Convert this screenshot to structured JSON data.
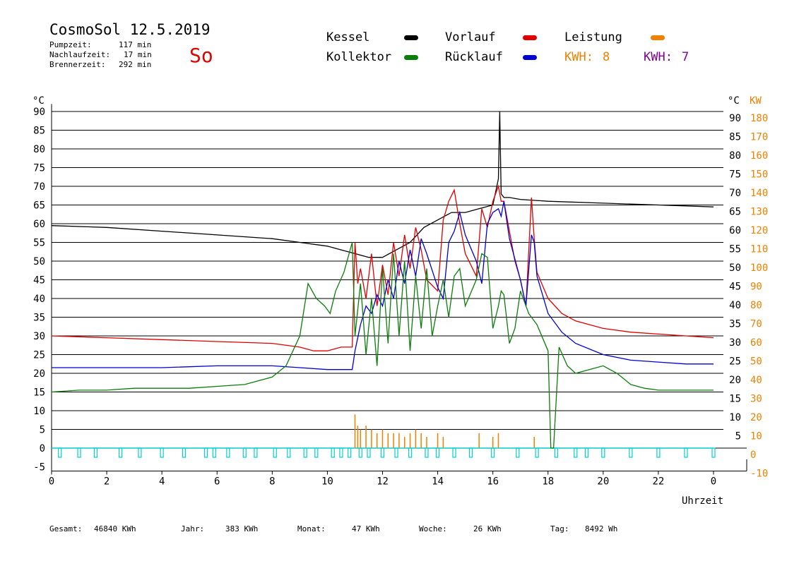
{
  "header": {
    "title": "CosmoSol 12.5.2019",
    "weekday": "So",
    "info": [
      {
        "label": "Pumpzeit:",
        "value": "117 min"
      },
      {
        "label": "Nachlaufzeit:",
        "value": "17 min"
      },
      {
        "label": "Brennerzeit:",
        "value": "292 min"
      }
    ]
  },
  "legend": {
    "kessel": {
      "label": "Kessel",
      "color": "#000000"
    },
    "kollektor": {
      "label": "Kollektor",
      "color": "#0a7d0a"
    },
    "vorlauf": {
      "label": "Vorlauf",
      "color": "#e00000"
    },
    "ruecklauf": {
      "label": "Rücklauf",
      "color": "#0000d0"
    },
    "leistung": {
      "label": "Leistung",
      "color": "#f08000"
    },
    "kwh_orange": {
      "label": "KWH:",
      "value": "8",
      "color": "#f08000"
    },
    "kwh_purple": {
      "label": "KWH:",
      "value": "7",
      "color": "#800090"
    }
  },
  "footer": [
    {
      "label": "Gesamt:",
      "value": "46840 KWh"
    },
    {
      "label": "Jahr:",
      "value": "383 KWh"
    },
    {
      "label": "Monat:",
      "value": "47 KWh"
    },
    {
      "label": "Woche:",
      "value": "26 KWh"
    },
    {
      "label": "Tag:",
      "value": "8492 Wh"
    }
  ],
  "chart_data": {
    "type": "line",
    "xlabel": "Uhrzeit",
    "ylabel_left": "°C",
    "ylabel_right_1": "°C",
    "ylabel_right_2": "KW",
    "xlim": [
      0,
      24
    ],
    "ylim": [
      -5,
      92
    ],
    "grid": true,
    "x_ticks": [
      "0",
      "2",
      "4",
      "6",
      "8",
      "10",
      "12",
      "14",
      "16",
      "18",
      "20",
      "22",
      "0"
    ],
    "y_ticks_left": [
      "90",
      "85",
      "80",
      "75",
      "70",
      "65",
      "60",
      "55",
      "50",
      "45",
      "40",
      "35",
      "30",
      "25",
      "20",
      "15",
      "10",
      "5",
      "0",
      "-5"
    ],
    "y_ticks_right": [
      "90",
      "85",
      "80",
      "75",
      "70",
      "65",
      "60",
      "55",
      "50",
      "45",
      "40",
      "35",
      "30",
      "25",
      "20",
      "15",
      "10",
      "5"
    ],
    "y_ticks_kw": [
      "180",
      "170",
      "160",
      "150",
      "140",
      "130",
      "120",
      "110",
      "100",
      "90",
      "80",
      "70",
      "60",
      "50",
      "40",
      "30",
      "20",
      "10",
      "0",
      "-10"
    ],
    "series": [
      {
        "name": "Kessel",
        "color": "#000000",
        "x": [
          0,
          2,
          4,
          6,
          8,
          9,
          10,
          10.5,
          11,
          11.5,
          12,
          12.5,
          13,
          13.5,
          14,
          14.5,
          15,
          15.5,
          16,
          16.2,
          16.25,
          16.3,
          16.4,
          16.6,
          17,
          18,
          20,
          22,
          24
        ],
        "y": [
          59.5,
          59,
          58,
          57,
          56,
          55,
          54,
          53,
          52,
          51,
          51,
          53,
          55,
          59,
          61,
          63,
          63,
          64,
          65,
          72,
          90,
          68,
          67,
          67,
          66.5,
          66,
          65.5,
          65,
          64.5
        ]
      },
      {
        "name": "Vorlauf",
        "color": "#e00000",
        "x": [
          0,
          2,
          4,
          6,
          8,
          9,
          9.5,
          10,
          10.5,
          10.9,
          11,
          11.1,
          11.2,
          11.4,
          11.6,
          11.8,
          12,
          12.2,
          12.4,
          12.6,
          12.8,
          13,
          13.2,
          13.4,
          13.6,
          14,
          14.2,
          14.4,
          14.6,
          14.8,
          15,
          15.4,
          15.6,
          15.8,
          16,
          16.2,
          16.3,
          16.4,
          16.6,
          16.8,
          17,
          17.2,
          17.4,
          17.5,
          17.6,
          18,
          18.5,
          19,
          20,
          21,
          22,
          23,
          24
        ],
        "y": [
          30,
          29.5,
          29,
          28.5,
          28,
          27,
          26,
          26,
          27,
          27,
          55,
          44,
          48,
          40,
          52,
          38,
          49,
          41,
          55,
          46,
          57,
          48,
          59,
          53,
          45,
          42,
          61,
          66,
          69,
          60,
          52,
          46,
          64,
          59,
          66,
          70,
          66,
          66,
          58,
          50,
          45,
          38,
          67,
          56,
          47,
          40,
          36,
          34,
          32,
          31,
          30.5,
          30,
          29.5
        ]
      },
      {
        "name": "Rücklauf",
        "color": "#0000d0",
        "x": [
          0,
          2,
          4,
          6,
          8,
          9,
          10,
          10.9,
          11,
          11.2,
          11.4,
          11.6,
          11.8,
          12,
          12.2,
          12.4,
          12.6,
          12.8,
          13,
          13.2,
          13.4,
          13.6,
          14,
          14.2,
          14.4,
          14.6,
          14.8,
          15,
          15.4,
          15.6,
          15.8,
          16,
          16.2,
          16.3,
          16.4,
          16.6,
          17,
          17.2,
          17.4,
          17.5,
          17.6,
          18,
          18.5,
          19,
          20,
          21,
          22,
          23,
          24
        ],
        "y": [
          21.5,
          21.5,
          21.5,
          22,
          22,
          21.5,
          21,
          21,
          26,
          33,
          38,
          36,
          41,
          38,
          45,
          40,
          50,
          44,
          53,
          46,
          56,
          52,
          43,
          40,
          55,
          58,
          63,
          57,
          50,
          44,
          60,
          63,
          64,
          62,
          66,
          56,
          45,
          38,
          57,
          55,
          46,
          36,
          31,
          28,
          25,
          23.5,
          23,
          22.5,
          22.5
        ]
      },
      {
        "name": "Kollektor",
        "color": "#0a7d0a",
        "x": [
          0,
          1,
          2,
          3,
          4,
          5,
          6,
          7,
          8,
          8.5,
          9,
          9.3,
          9.6,
          9.9,
          10.1,
          10.3,
          10.6,
          10.9,
          11,
          11.2,
          11.4,
          11.6,
          11.8,
          12,
          12.2,
          12.4,
          12.6,
          12.8,
          13,
          13.2,
          13.4,
          13.6,
          13.8,
          14,
          14.2,
          14.4,
          14.6,
          14.8,
          15,
          15.4,
          15.6,
          15.8,
          16,
          16.2,
          16.3,
          16.4,
          16.6,
          16.8,
          17,
          17.3,
          17.6,
          18,
          18.1,
          18.2,
          18.4,
          18.7,
          19,
          19.5,
          20,
          20.5,
          21,
          21.5,
          22,
          23,
          24
        ],
        "y": [
          15,
          15.5,
          15.5,
          16,
          16,
          16,
          16.5,
          17,
          19,
          22,
          30,
          44,
          40,
          38,
          36,
          42,
          47,
          55,
          30,
          44,
          25,
          40,
          22,
          48,
          28,
          52,
          30,
          50,
          26,
          46,
          32,
          48,
          30,
          38,
          45,
          35,
          46,
          48,
          38,
          45,
          52,
          51,
          32,
          38,
          42,
          41,
          28,
          32,
          42,
          36,
          33,
          26,
          0,
          0,
          27,
          22,
          20,
          21,
          22,
          20,
          17,
          16,
          15.5,
          15.5,
          15.5
        ]
      }
    ],
    "leistung_spikes": {
      "name": "Leistung",
      "color": "#f08000",
      "x": [
        11,
        11.1,
        11.2,
        11.4,
        11.6,
        11.8,
        12,
        12.2,
        12.4,
        12.6,
        12.8,
        13,
        13.2,
        13.4,
        13.6,
        14,
        14.2,
        15.5,
        16,
        16.2,
        17.5
      ],
      "kw": [
        18,
        12,
        10,
        12,
        10,
        8,
        10,
        8,
        8,
        8,
        6,
        8,
        10,
        8,
        6,
        8,
        6,
        8,
        6,
        8,
        6
      ]
    },
    "rhythm_markers": {
      "color": "#00d0d0",
      "x": [
        0.3,
        1,
        1.6,
        2.5,
        3.2,
        4,
        4.8,
        5.6,
        5.9,
        6.4,
        7,
        7.4,
        8.1,
        8.6,
        9.2,
        9.6,
        10.2,
        10.5,
        10.8,
        11.2,
        11.5,
        12,
        12.5,
        13,
        13.6,
        14,
        14.6,
        15.2,
        16,
        16.9,
        17.6,
        18.3,
        19,
        19.4,
        20,
        21,
        22,
        23,
        24
      ]
    }
  }
}
